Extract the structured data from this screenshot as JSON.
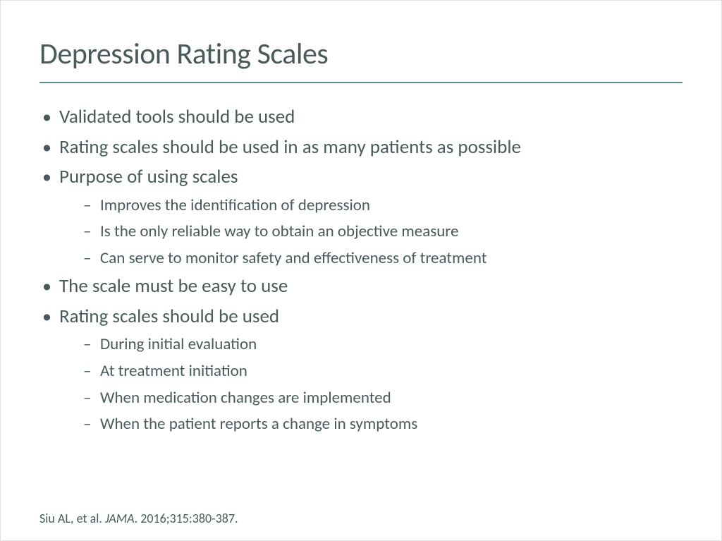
{
  "slide": {
    "title": "Depression Rating Scales",
    "bullets": [
      {
        "text": "Validated tools should be used",
        "sub": []
      },
      {
        "text": "Rating scales should be used in as many patients as possible",
        "sub": []
      },
      {
        "text": "Purpose of using scales",
        "sub": [
          "Improves the identification of depression",
          "Is the only reliable way to obtain an objective measure",
          "Can serve to monitor safety and effectiveness of treatment"
        ]
      },
      {
        "text": "The scale must be easy to use",
        "sub": []
      },
      {
        "text": "Rating scales should be used",
        "sub": [
          "During initial evaluation",
          "At treatment initiation",
          "When medication changes are implemented",
          "When the patient reports a change in symptoms"
        ]
      }
    ],
    "citation_prefix": "Siu AL, et al. ",
    "citation_journal": "JAMA",
    "citation_suffix": ". 2016;315:380-387."
  },
  "styling": {
    "title_color": "#4a5a5a",
    "title_fontsize": 42,
    "rule_color": "#5a8a8a",
    "body_color": "#4a5a5a",
    "level1_fontsize": 27,
    "level2_fontsize": 23,
    "citation_fontsize": 18,
    "background_color": "#ffffff",
    "slide_width": 1024,
    "slide_height": 767
  }
}
